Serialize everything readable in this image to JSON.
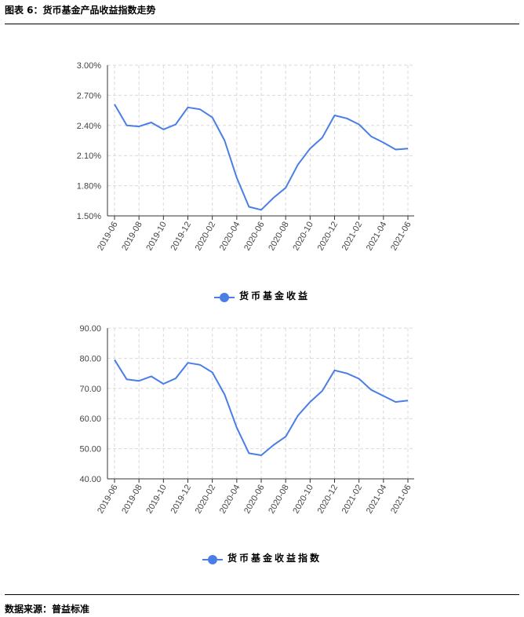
{
  "header": {
    "title": "图表 6：货币基金产品收益指数走势"
  },
  "footer": {
    "source": "数据来源：普益标准"
  },
  "colors": {
    "line": "#4a7ee6",
    "grid": "#d9d9d9",
    "axis": "#333333"
  },
  "chart_data": [
    {
      "type": "line",
      "x": [
        "2019-06",
        "2019-07",
        "2019-08",
        "2019-09",
        "2019-10",
        "2019-11",
        "2019-12",
        "2020-01",
        "2020-02",
        "2020-03",
        "2020-04",
        "2020-05",
        "2020-06",
        "2020-07",
        "2020-08",
        "2020-09",
        "2020-10",
        "2020-11",
        "2020-12",
        "2021-01",
        "2021-02",
        "2021-03",
        "2021-04",
        "2021-05",
        "2021-06"
      ],
      "tick_labels": [
        "2019-06",
        "2019-08",
        "2019-10",
        "2019-12",
        "2020-02",
        "2020-04",
        "2020-06",
        "2020-08",
        "2020-10",
        "2020-12",
        "2021-02",
        "2021-04",
        "2021-06"
      ],
      "series": [
        {
          "name": "货币基金收益",
          "values": [
            2.61,
            2.4,
            2.39,
            2.43,
            2.36,
            2.41,
            2.58,
            2.56,
            2.48,
            2.25,
            1.88,
            1.59,
            1.56,
            1.68,
            1.78,
            2.01,
            2.17,
            2.28,
            2.5,
            2.47,
            2.41,
            2.29,
            2.23,
            2.16,
            2.17
          ]
        }
      ],
      "yticks": [
        "1.50%",
        "1.80%",
        "2.10%",
        "2.40%",
        "2.70%",
        "3.00%"
      ],
      "ylim": [
        1.5,
        3.0
      ],
      "grid": true,
      "legend": "bottom"
    },
    {
      "type": "line",
      "x": [
        "2019-06",
        "2019-07",
        "2019-08",
        "2019-09",
        "2019-10",
        "2019-11",
        "2019-12",
        "2020-01",
        "2020-02",
        "2020-03",
        "2020-04",
        "2020-05",
        "2020-06",
        "2020-07",
        "2020-08",
        "2020-09",
        "2020-10",
        "2020-11",
        "2020-12",
        "2021-01",
        "2021-02",
        "2021-03",
        "2021-04",
        "2021-05",
        "2021-06"
      ],
      "tick_labels": [
        "2019-06",
        "2019-08",
        "2019-10",
        "2019-12",
        "2020-02",
        "2020-04",
        "2020-06",
        "2020-08",
        "2020-10",
        "2020-12",
        "2021-02",
        "2021-04",
        "2021-06"
      ],
      "series": [
        {
          "name": "货币基金收益指数",
          "values": [
            79.5,
            73.0,
            72.5,
            74.0,
            71.5,
            73.3,
            78.5,
            77.8,
            75.3,
            68.0,
            57.0,
            48.5,
            47.8,
            51.2,
            54.0,
            61.0,
            65.5,
            69.2,
            76.0,
            75.0,
            73.2,
            69.5,
            67.5,
            65.5,
            66.0
          ]
        }
      ],
      "yticks": [
        "40.00",
        "50.00",
        "60.00",
        "70.00",
        "80.00",
        "90.00"
      ],
      "ylim": [
        40,
        90
      ],
      "grid": true,
      "legend": "bottom"
    }
  ]
}
